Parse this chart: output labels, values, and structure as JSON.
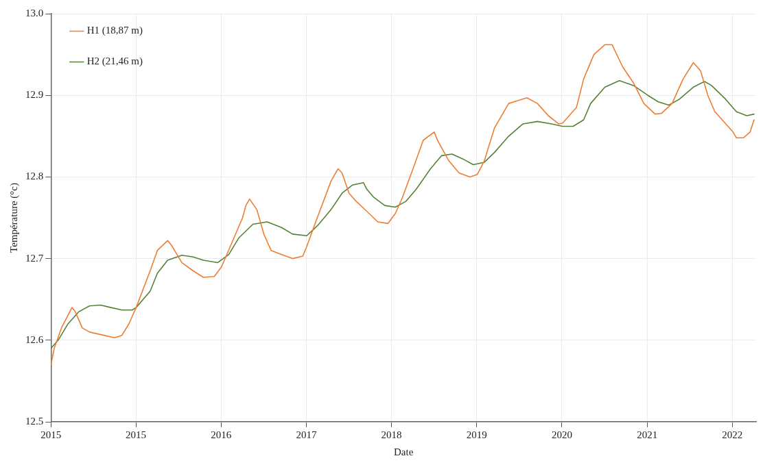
{
  "chart_data": {
    "type": "line",
    "xlabel": "Date",
    "ylabel": "Température (°c)",
    "xlim": [
      "2015-01-01",
      "2023-04-10"
    ],
    "ylim": [
      12.5,
      13.0
    ],
    "xticks": [
      {
        "value": "2015-01-01",
        "label": "2015"
      },
      {
        "value": "2015-12-31",
        "label": "2015"
      },
      {
        "value": "2016-12-30",
        "label": "2016"
      },
      {
        "value": "2017-12-30",
        "label": "2017"
      },
      {
        "value": "2018-12-30",
        "label": "2018"
      },
      {
        "value": "2019-12-30",
        "label": "2019"
      },
      {
        "value": "2020-12-29",
        "label": "2020"
      },
      {
        "value": "2021-12-29",
        "label": "2021"
      },
      {
        "value": "2022-12-29",
        "label": "2022"
      }
    ],
    "yticks": [
      {
        "value": 12.5,
        "label": "12.5"
      },
      {
        "value": 12.6,
        "label": "12.6"
      },
      {
        "value": 12.7,
        "label": "12.7"
      },
      {
        "value": 12.8,
        "label": "12.8"
      },
      {
        "value": 12.9,
        "label": "12.9"
      },
      {
        "value": 13.0,
        "label": "13.0"
      }
    ],
    "grid": true,
    "legend": "top left",
    "marker": "none",
    "line_style": "solid",
    "series": [
      {
        "name": "H1 (18,87 m)",
        "color": "#ed7d31",
        "x": [
          "2015-01-01",
          "2015-01-15",
          "2015-02-15",
          "2015-04-01",
          "2015-04-15",
          "2015-05-15",
          "2015-06-15",
          "2015-08-15",
          "2015-10-01",
          "2015-11-01",
          "2015-12-01",
          "2016-01-01",
          "2016-03-01",
          "2016-04-01",
          "2016-05-15",
          "2016-06-01",
          "2016-07-15",
          "2016-09-01",
          "2016-10-15",
          "2016-12-01",
          "2017-01-01",
          "2017-02-15",
          "2017-04-01",
          "2017-04-15",
          "2017-05-01",
          "2017-06-01",
          "2017-07-01",
          "2017-08-01",
          "2017-09-15",
          "2017-11-01",
          "2017-12-15",
          "2018-01-01",
          "2018-02-15",
          "2018-04-15",
          "2018-05-15",
          "2018-06-01",
          "2018-07-01",
          "2018-08-01",
          "2018-09-15",
          "2018-11-01",
          "2018-12-15",
          "2019-01-15",
          "2019-02-15",
          "2019-04-01",
          "2019-05-15",
          "2019-07-01",
          "2019-07-15",
          "2019-09-01",
          "2019-10-15",
          "2019-12-01",
          "2020-01-01",
          "2020-02-01",
          "2020-03-15",
          "2020-05-15",
          "2020-08-01",
          "2020-09-15",
          "2020-11-01",
          "2020-12-15",
          "2021-01-01",
          "2021-03-01",
          "2021-04-01",
          "2021-05-15",
          "2021-07-01",
          "2021-08-01",
          "2021-09-15",
          "2021-11-01",
          "2021-12-15",
          "2022-02-01",
          "2022-03-01",
          "2022-04-15",
          "2022-06-01",
          "2022-07-15",
          "2022-08-15",
          "2022-09-15",
          "2022-10-15",
          "2023-01-01",
          "2023-01-15",
          "2023-02-15",
          "2023-03-15",
          "2023-04-01"
        ],
        "values": [
          12.57,
          12.59,
          12.615,
          12.64,
          12.635,
          12.615,
          12.61,
          12.606,
          12.603,
          12.606,
          12.62,
          12.64,
          12.685,
          12.71,
          12.722,
          12.716,
          12.695,
          12.685,
          12.677,
          12.678,
          12.69,
          12.72,
          12.75,
          12.765,
          12.773,
          12.76,
          12.73,
          12.71,
          12.705,
          12.7,
          12.703,
          12.715,
          12.75,
          12.795,
          12.81,
          12.805,
          12.78,
          12.77,
          12.758,
          12.745,
          12.743,
          12.755,
          12.775,
          12.81,
          12.845,
          12.855,
          12.845,
          12.82,
          12.805,
          12.8,
          12.803,
          12.82,
          12.86,
          12.89,
          12.897,
          12.89,
          12.875,
          12.865,
          12.866,
          12.885,
          12.92,
          12.95,
          12.962,
          12.962,
          12.935,
          12.915,
          12.89,
          12.877,
          12.878,
          12.89,
          12.92,
          12.94,
          12.93,
          12.9,
          12.88,
          12.855,
          12.848,
          12.848,
          12.855,
          12.87
        ]
      },
      {
        "name": "H2 (21,46 m)",
        "color": "#548235",
        "x": [
          "2015-01-01",
          "2015-02-01",
          "2015-03-15",
          "2015-05-01",
          "2015-06-15",
          "2015-08-01",
          "2015-09-15",
          "2015-11-01",
          "2015-12-15",
          "2016-01-01",
          "2016-03-01",
          "2016-04-01",
          "2016-05-15",
          "2016-07-15",
          "2016-09-01",
          "2016-10-15",
          "2016-12-15",
          "2017-02-01",
          "2017-03-15",
          "2017-05-15",
          "2017-07-15",
          "2017-09-15",
          "2017-11-01",
          "2018-01-01",
          "2018-02-15",
          "2018-04-15",
          "2018-06-01",
          "2018-07-15",
          "2018-09-01",
          "2018-09-15",
          "2018-10-15",
          "2018-12-01",
          "2019-01-15",
          "2019-03-01",
          "2019-04-15",
          "2019-06-15",
          "2019-08-01",
          "2019-09-15",
          "2019-11-01",
          "2019-12-15",
          "2020-02-01",
          "2020-03-15",
          "2020-05-15",
          "2020-07-15",
          "2020-09-15",
          "2020-11-15",
          "2021-01-01",
          "2021-02-15",
          "2021-04-01",
          "2021-05-01",
          "2021-07-01",
          "2021-09-01",
          "2021-11-01",
          "2022-01-01",
          "2022-02-15",
          "2022-04-01",
          "2022-05-15",
          "2022-07-15",
          "2022-09-01",
          "2022-10-01",
          "2022-12-01",
          "2023-01-15",
          "2023-03-01",
          "2023-04-01"
        ],
        "values": [
          12.59,
          12.6,
          12.62,
          12.635,
          12.642,
          12.643,
          12.64,
          12.637,
          12.637,
          12.64,
          12.66,
          12.682,
          12.698,
          12.704,
          12.702,
          12.698,
          12.695,
          12.705,
          12.725,
          12.742,
          12.745,
          12.738,
          12.73,
          12.728,
          12.74,
          12.76,
          12.78,
          12.79,
          12.793,
          12.785,
          12.775,
          12.765,
          12.763,
          12.77,
          12.785,
          12.81,
          12.826,
          12.828,
          12.822,
          12.815,
          12.818,
          12.83,
          12.85,
          12.865,
          12.868,
          12.865,
          12.862,
          12.862,
          12.87,
          12.89,
          12.91,
          12.918,
          12.912,
          12.9,
          12.892,
          12.888,
          12.895,
          12.91,
          12.917,
          12.912,
          12.895,
          12.88,
          12.875,
          12.877
        ]
      }
    ]
  }
}
